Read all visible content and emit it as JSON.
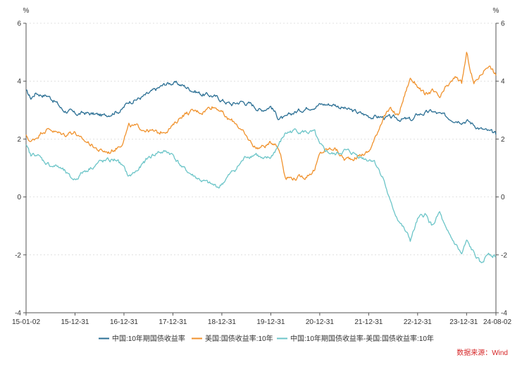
{
  "chart_data": {
    "type": "line",
    "title": "",
    "xlabel": "",
    "ylabel_left": "%",
    "ylabel_right": "%",
    "ylim": [
      -4,
      6
    ],
    "y_ticks": [
      -4,
      -2,
      0,
      2,
      4,
      6
    ],
    "y_tick_labels_left": [
      "-4",
      "-2",
      "0",
      "2",
      "4",
      "6"
    ],
    "y_tick_labels_right": [
      "-4",
      "-2",
      "0",
      "2",
      "4",
      "6"
    ],
    "x_domain": [
      2015.0,
      2024.6
    ],
    "x_ticks": [
      2015.0,
      2016.0,
      2017.0,
      2018.0,
      2019.0,
      2020.0,
      2021.0,
      2022.0,
      2023.0,
      2024.0,
      2024.6
    ],
    "x_tick_labels": [
      "15-01-02",
      "15-12-31",
      "16-12-31",
      "17-12-31",
      "18-12-31",
      "19-12-31",
      "20-12-31",
      "21-12-31",
      "22-12-31",
      "23-12-31",
      "24-08-02"
    ],
    "grid": true,
    "legend_position": "bottom",
    "source": "数据来源：Wind",
    "series": [
      {
        "name": "中国:10年期国债收益率",
        "color": "#2b6f94",
        "x": [
          2015.0,
          2015.1,
          2015.2,
          2015.3,
          2015.45,
          2015.6,
          2015.75,
          2015.9,
          2016.0,
          2016.2,
          2016.4,
          2016.6,
          2016.8,
          2016.95,
          2017.1,
          2017.3,
          2017.5,
          2017.7,
          2017.85,
          2018.0,
          2018.2,
          2018.4,
          2018.6,
          2018.8,
          2019.0,
          2019.2,
          2019.4,
          2019.6,
          2019.8,
          2020.0,
          2020.15,
          2020.3,
          2020.45,
          2020.6,
          2020.85,
          2021.0,
          2021.3,
          2021.6,
          2021.9,
          2022.0,
          2022.3,
          2022.6,
          2022.9,
          2023.0,
          2023.3,
          2023.6,
          2023.9,
          2024.0,
          2024.3,
          2024.6
        ],
        "y": [
          3.65,
          3.4,
          3.6,
          3.55,
          3.5,
          3.3,
          3.0,
          2.95,
          2.85,
          2.9,
          2.85,
          2.8,
          2.95,
          3.0,
          3.3,
          3.4,
          3.55,
          3.75,
          3.9,
          3.95,
          3.85,
          3.7,
          3.55,
          3.5,
          3.35,
          3.2,
          3.3,
          3.2,
          3.0,
          3.15,
          2.75,
          2.7,
          2.9,
          3.0,
          3.15,
          3.2,
          3.2,
          3.0,
          2.85,
          2.8,
          2.75,
          2.7,
          2.65,
          2.85,
          2.95,
          2.75,
          2.65,
          2.65,
          2.35,
          2.15
        ]
      },
      {
        "name": "美国:国债收益率:10年",
        "color": "#f0922d",
        "x": [
          2015.0,
          2015.1,
          2015.2,
          2015.35,
          2015.5,
          2015.65,
          2015.8,
          2015.9,
          2016.0,
          2016.1,
          2016.3,
          2016.5,
          2016.7,
          2016.85,
          2016.95,
          2017.1,
          2017.3,
          2017.5,
          2017.7,
          2017.9,
          2018.0,
          2018.2,
          2018.4,
          2018.6,
          2018.8,
          2018.95,
          2019.1,
          2019.3,
          2019.5,
          2019.7,
          2019.85,
          2020.0,
          2020.1,
          2020.2,
          2020.3,
          2020.5,
          2020.7,
          2020.9,
          2021.0,
          2021.1,
          2021.3,
          2021.5,
          2021.7,
          2021.9,
          2022.0,
          2022.15,
          2022.3,
          2022.45,
          2022.6,
          2022.75,
          2022.85,
          2023.0,
          2023.15,
          2023.3,
          2023.45,
          2023.6,
          2023.8,
          2023.9,
          2024.0,
          2024.15,
          2024.3,
          2024.45,
          2024.6
        ],
        "y": [
          2.1,
          1.9,
          2.05,
          2.3,
          2.35,
          2.2,
          2.15,
          2.25,
          2.25,
          2.0,
          1.85,
          1.6,
          1.55,
          1.7,
          1.85,
          2.45,
          2.4,
          2.3,
          2.2,
          2.35,
          2.45,
          2.85,
          2.95,
          2.95,
          3.15,
          3.05,
          2.7,
          2.55,
          2.05,
          1.7,
          1.75,
          1.85,
          1.9,
          1.5,
          0.7,
          0.65,
          0.7,
          0.95,
          1.45,
          1.6,
          1.7,
          1.3,
          1.35,
          1.5,
          1.55,
          2.1,
          2.8,
          3.0,
          2.8,
          3.6,
          4.1,
          3.85,
          3.5,
          3.65,
          3.4,
          3.8,
          4.15,
          3.9,
          4.95,
          3.9,
          4.25,
          4.6,
          4.2
        ]
      },
      {
        "name": "中国:10年期国债收益率-美国:国债收益率:10年",
        "color": "#6cc5c8",
        "x": [
          2015.0,
          2015.1,
          2015.2,
          2015.35,
          2015.5,
          2015.65,
          2015.8,
          2015.9,
          2016.0,
          2016.15,
          2016.3,
          2016.5,
          2016.7,
          2016.85,
          2016.95,
          2017.1,
          2017.3,
          2017.5,
          2017.7,
          2017.9,
          2018.0,
          2018.2,
          2018.4,
          2018.6,
          2018.8,
          2018.95,
          2019.1,
          2019.3,
          2019.5,
          2019.7,
          2019.85,
          2020.0,
          2020.2,
          2020.3,
          2020.5,
          2020.7,
          2020.9,
          2021.0,
          2021.1,
          2021.3,
          2021.5,
          2021.7,
          2021.9,
          2022.0,
          2022.1,
          2022.3,
          2022.45,
          2022.55,
          2022.7,
          2022.85,
          2023.0,
          2023.15,
          2023.3,
          2023.45,
          2023.6,
          2023.8,
          2023.9,
          2024.0,
          2024.15,
          2024.3,
          2024.45,
          2024.6
        ],
        "y": [
          1.75,
          1.4,
          1.5,
          1.25,
          1.1,
          1.05,
          0.85,
          0.65,
          0.6,
          0.85,
          1.0,
          1.2,
          1.25,
          1.3,
          1.1,
          0.7,
          0.95,
          1.35,
          1.55,
          1.55,
          1.45,
          1.0,
          0.75,
          0.55,
          0.4,
          0.35,
          0.65,
          1.0,
          1.4,
          1.5,
          1.25,
          1.35,
          1.9,
          2.2,
          2.3,
          2.25,
          2.2,
          1.75,
          1.6,
          1.45,
          1.6,
          1.5,
          1.35,
          1.3,
          1.3,
          0.65,
          -0.25,
          -0.6,
          -1.05,
          -1.5,
          -0.8,
          -0.6,
          -1.0,
          -0.55,
          -1.25,
          -1.7,
          -2.0,
          -1.55,
          -1.95,
          -2.35,
          -1.9,
          -2.05
        ]
      }
    ]
  }
}
